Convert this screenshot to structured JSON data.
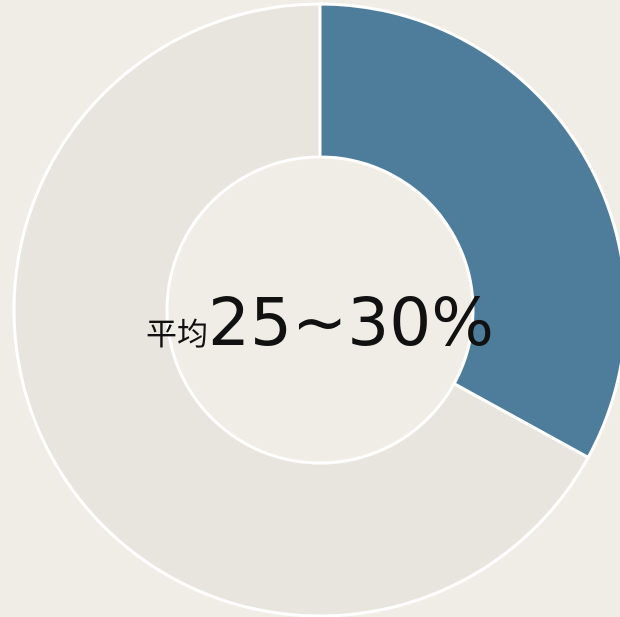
{
  "chart_data": {
    "type": "donut",
    "categories": [
      null,
      null
    ],
    "values": [
      33,
      67
    ],
    "colors": [
      "#4e7d9c",
      "#e7e5de"
    ],
    "center_prefix": "平均",
    "center_value": "25~30%"
  }
}
